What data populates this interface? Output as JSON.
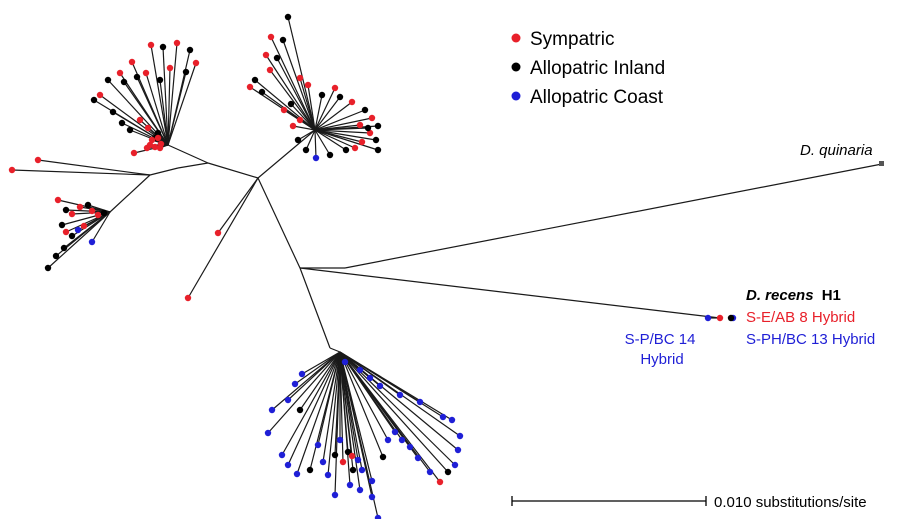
{
  "legend": {
    "placement": "top-center",
    "entries": [
      {
        "label": "Sympatric",
        "color": "#e8202a"
      },
      {
        "label": "Allopatric Inland",
        "color": "#000000"
      },
      {
        "label": "Allopatric Coast",
        "color": "#1f1fd6"
      }
    ]
  },
  "labels": {
    "quinaria": "D. quinaria",
    "recens_italic": "D. recens",
    "recens_suffix": "H1",
    "hybrid_se_ab8": "S-E/AB 8 Hybrid",
    "hybrid_sph_bc13": "S-PH/BC 13 Hybrid",
    "hybrid_sp_bc14_line1": "S-P/BC 14",
    "hybrid_sp_bc14_line2": "Hybrid"
  },
  "colors": {
    "sympatric": "#e8202a",
    "inland": "#000000",
    "coast": "#1f1fd6",
    "branch": "#1a1a1a"
  },
  "scale_bar": {
    "label": "0.010 substitutions/site",
    "value": 0.01
  }
}
